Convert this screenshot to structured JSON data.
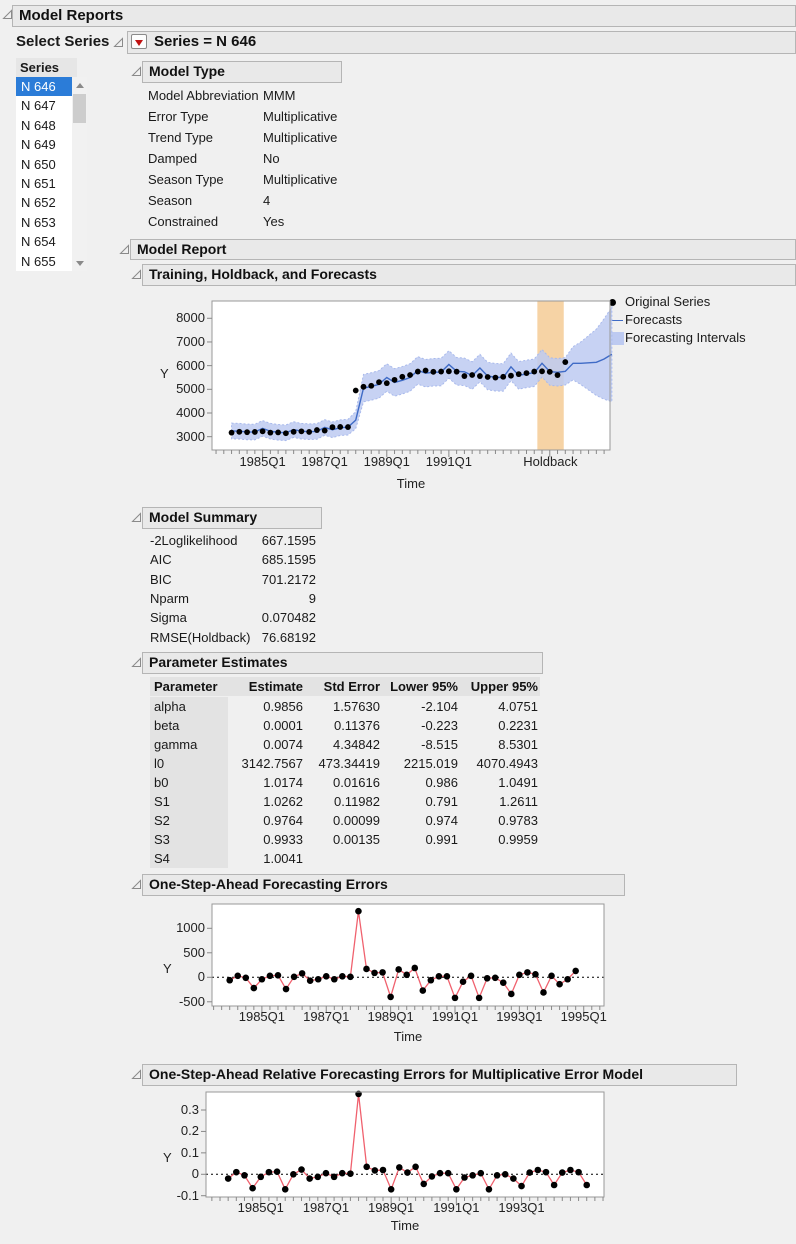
{
  "app": {
    "title": "Model Reports"
  },
  "select_series": {
    "label": "Select Series"
  },
  "series_panel": {
    "column_header": "Series",
    "items": [
      "N 646",
      "N 647",
      "N 648",
      "N 649",
      "N 650",
      "N 651",
      "N 652",
      "N 653",
      "N 654",
      "N 655"
    ],
    "selected_index": 0
  },
  "series_header": {
    "title": "Series = N 646"
  },
  "model_type": {
    "title": "Model Type",
    "rows": [
      [
        "Model Abbreviation",
        "MMM"
      ],
      [
        "Error Type",
        "Multiplicative"
      ],
      [
        "Trend Type",
        "Multiplicative"
      ],
      [
        "Damped",
        "No"
      ],
      [
        "Season Type",
        "Multiplicative"
      ],
      [
        "Season",
        "4"
      ],
      [
        "Constrained",
        "Yes"
      ]
    ]
  },
  "model_report": {
    "title": "Model Report"
  },
  "model_summary": {
    "title": "Model Summary",
    "rows": [
      [
        "-2Loglikelihood",
        "667.1595"
      ],
      [
        "AIC",
        "685.1595"
      ],
      [
        "BIC",
        "701.2172"
      ],
      [
        "Nparm",
        "9"
      ],
      [
        "Sigma",
        "0.070482"
      ],
      [
        "RMSE(Holdback)",
        "76.68192"
      ]
    ]
  },
  "parameter_estimates": {
    "title": "Parameter Estimates",
    "columns": [
      "Parameter",
      "Estimate",
      "Std Error",
      "Lower 95%",
      "Upper 95%"
    ],
    "rows": [
      [
        "alpha",
        "0.9856",
        "1.57630",
        "-2.104",
        "4.0751"
      ],
      [
        "beta",
        "0.0001",
        "0.11376",
        "-0.223",
        "0.2231"
      ],
      [
        "gamma",
        "0.0074",
        "4.34842",
        "-8.515",
        "8.5301"
      ],
      [
        "l0",
        "3142.7567",
        "473.34419",
        "2215.019",
        "4070.4943"
      ],
      [
        "b0",
        "1.0174",
        "0.01616",
        "0.986",
        "1.0491"
      ],
      [
        "S1",
        "1.0262",
        "0.11982",
        "0.791",
        "1.2611"
      ],
      [
        "S2",
        "0.9764",
        "0.00099",
        "0.974",
        "0.9783"
      ],
      [
        "S3",
        "0.9933",
        "0.00135",
        "0.991",
        "0.9959"
      ],
      [
        "S4",
        "1.0041",
        "",
        "",
        ""
      ]
    ]
  },
  "colors": {
    "selection": "#2b7cd8",
    "forecast_line": "#3f6bc6",
    "interval_fill": "#bdcaf1",
    "interval_edge": "#a8b9ec",
    "holdback_band": "#f6d3a5",
    "error_line": "#f0616e",
    "dot": "#000000",
    "frame": "#999999",
    "menu_button_red": "#c11212"
  },
  "chart_data": [
    {
      "type": "line",
      "section_title": "Training, Holdback, and Forecasts",
      "ylabel": "Y",
      "xlabel": "Time",
      "x_start": 1984.0,
      "x_step": 0.25,
      "xlim": [
        1983.37,
        1996.19
      ],
      "ylim": [
        2437,
        8730
      ],
      "yticks": [
        3000,
        4000,
        5000,
        6000,
        7000,
        8000
      ],
      "xticks": [
        {
          "x": 1985,
          "label": "1985Q1"
        },
        {
          "x": 1987,
          "label": "1987Q1"
        },
        {
          "x": 1989,
          "label": "1989Q1"
        },
        {
          "x": 1991,
          "label": "1991Q1"
        },
        {
          "x": 1994.27,
          "label": "Holdback"
        }
      ],
      "holdback_region": {
        "x0": 1993.85,
        "x1": 1994.7
      },
      "legend": [
        "Original Series",
        "Forecasts",
        "Forecasting Intervals"
      ],
      "original_series": [
        3170,
        3205,
        3190,
        3200,
        3225,
        3170,
        3180,
        3145,
        3205,
        3225,
        3200,
        3280,
        3255,
        3400,
        3410,
        3405,
        4950,
        5105,
        5150,
        5300,
        5260,
        5400,
        5530,
        5605,
        5750,
        5795,
        5740,
        5750,
        5760,
        5745,
        5560,
        5605,
        5560,
        5520,
        5495,
        5530,
        5575,
        5640,
        5685,
        5750,
        5760,
        5740,
        5600,
        6150
      ],
      "forecasts": [
        3240,
        3230,
        3200,
        3195,
        3350,
        3230,
        3185,
        3165,
        3300,
        3230,
        3210,
        3220,
        3390,
        3290,
        3380,
        3400,
        3700,
        5050,
        5120,
        5210,
        5500,
        5290,
        5380,
        5500,
        5800,
        5680,
        5720,
        5730,
        6050,
        5760,
        5740,
        5580,
        5900,
        5560,
        5510,
        5500,
        5950,
        5590,
        5650,
        5700,
        6100,
        5750,
        5720,
        5760,
        6100,
        6100,
        6120,
        6140,
        6280,
        6480
      ],
      "interval_halfwidth": [
        330,
        330,
        330,
        330,
        330,
        330,
        330,
        330,
        330,
        330,
        330,
        330,
        330,
        330,
        330,
        330,
        360,
        580,
        580,
        580,
        580,
        580,
        580,
        580,
        580,
        580,
        580,
        580,
        580,
        580,
        580,
        580,
        580,
        580,
        580,
        580,
        580,
        580,
        580,
        580,
        580,
        580,
        580,
        580,
        700,
        900,
        1150,
        1400,
        1700,
        2000
      ]
    },
    {
      "type": "line",
      "section_title": "One-Step-Ahead Forecasting Errors",
      "ylabel": "Y",
      "xlabel": "Time",
      "x_start": 1984.0,
      "x_step": 0.25,
      "xlim": [
        1983.45,
        1995.63
      ],
      "ylim": [
        -586,
        1496
      ],
      "yticks": [
        -500,
        0,
        500,
        1000
      ],
      "xticks": [
        {
          "x": 1985,
          "label": "1985Q1"
        },
        {
          "x": 1987,
          "label": "1987Q1"
        },
        {
          "x": 1989,
          "label": "1989Q1"
        },
        {
          "x": 1991,
          "label": "1991Q1"
        },
        {
          "x": 1993,
          "label": "1993Q1"
        },
        {
          "x": 1995,
          "label": "1995Q1"
        }
      ],
      "zero_line": true,
      "errors": [
        -60,
        30,
        -10,
        -220,
        -40,
        30,
        40,
        -240,
        10,
        80,
        -70,
        -40,
        20,
        -40,
        20,
        10,
        1350,
        170,
        90,
        100,
        -400,
        160,
        50,
        190,
        -270,
        -60,
        20,
        20,
        -420,
        -90,
        30,
        -420,
        -20,
        -10,
        -110,
        -340,
        50,
        100,
        60,
        -310,
        30,
        -140,
        -40,
        130
      ]
    },
    {
      "type": "line",
      "section_title": "One-Step-Ahead Relative Forecasting Errors for Multiplicative Error Model",
      "ylabel": "Y",
      "xlabel": "Time",
      "x_start": 1984.0,
      "x_step": 0.25,
      "xlim": [
        1983.32,
        1995.53
      ],
      "ylim": [
        -0.106,
        0.384
      ],
      "yticks": [
        -0.1,
        0,
        0.1,
        0.2,
        0.3
      ],
      "xticks": [
        {
          "x": 1985,
          "label": "1985Q1"
        },
        {
          "x": 1987,
          "label": "1987Q1"
        },
        {
          "x": 1989,
          "label": "1989Q1"
        },
        {
          "x": 1991,
          "label": "1991Q1"
        },
        {
          "x": 1993,
          "label": "1993Q1"
        }
      ],
      "zero_line": true,
      "errors": [
        -0.02,
        0.01,
        -0.005,
        -0.065,
        -0.012,
        0.01,
        0.012,
        -0.07,
        0,
        0.022,
        -0.02,
        -0.012,
        0.005,
        -0.012,
        0.005,
        0.003,
        0.375,
        0.035,
        0.018,
        0.02,
        -0.07,
        0.032,
        0.008,
        0.035,
        -0.045,
        -0.01,
        0.005,
        0.005,
        -0.07,
        -0.015,
        -0.005,
        0.005,
        -0.07,
        -0.005,
        0,
        -0.02,
        -0.055,
        0.008,
        0.02,
        0.01,
        -0.05,
        0.008,
        0.02,
        0.01,
        -0.05
      ]
    }
  ]
}
